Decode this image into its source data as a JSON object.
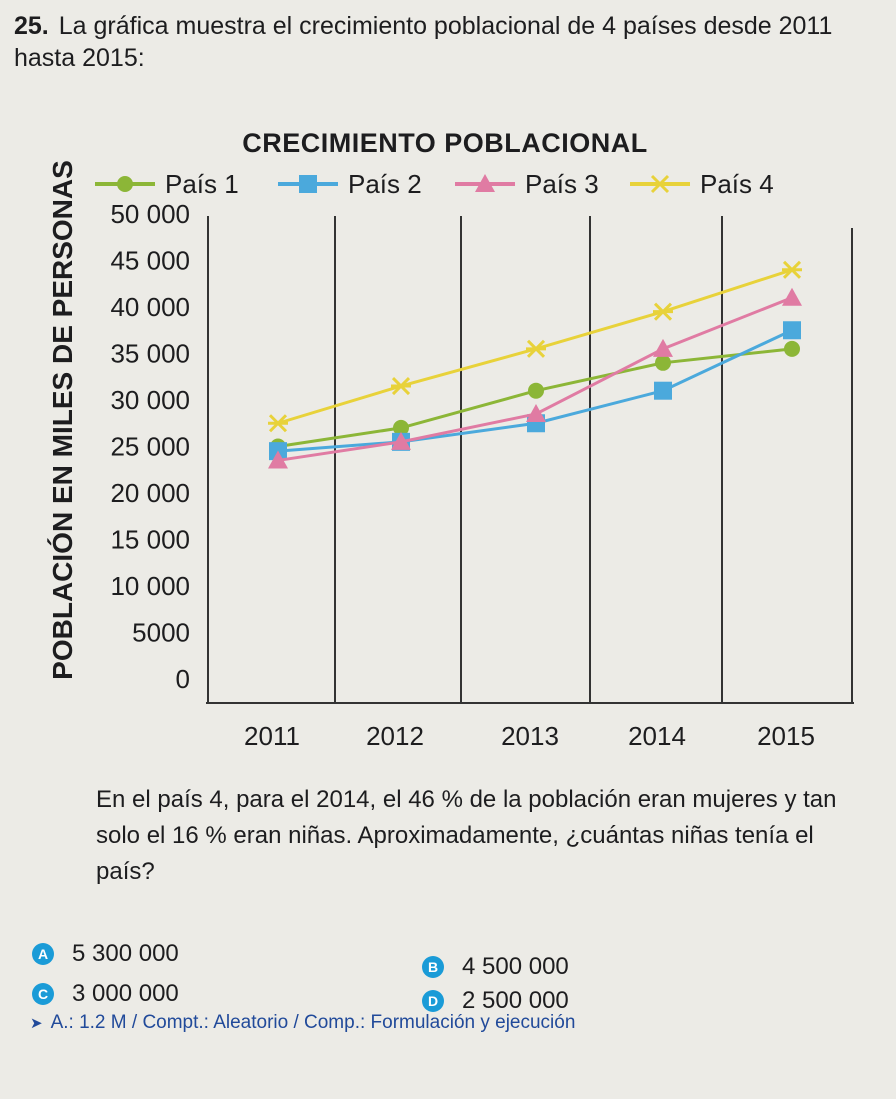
{
  "question": {
    "number": "25.",
    "text": "La gráfica muestra el crecimiento poblacional de 4 países desde 2011 hasta 2015:",
    "prompt": "En el país 4, para el 2014, el 46 % de la población eran mujeres y tan solo el 16 % eran niñas. Aproximadamente, ¿cuántas niñas tenía el país?"
  },
  "options": [
    {
      "letter": "A",
      "value": "5 300 000"
    },
    {
      "letter": "B",
      "value": "4 500 000"
    },
    {
      "letter": "C",
      "value": "3 000 000"
    },
    {
      "letter": "D",
      "value": "2 500 000"
    }
  ],
  "footer": "A.: 1.2 M / Compt.: Aleatorio / Comp.: Formulación y ejecución",
  "colors": {
    "badge": "#1a9bd7",
    "footer": "#214a9a"
  },
  "chart_data": {
    "type": "line",
    "title": "CRECIMIENTO POBLACIONAL",
    "ylabel": "POBLACIÓN EN MILES DE PERSONAS",
    "xlabel": "",
    "x": [
      "2011",
      "2012",
      "2013",
      "2014",
      "2015"
    ],
    "ylim": [
      0,
      50000
    ],
    "yticks": [
      0,
      5000,
      10000,
      15000,
      20000,
      25000,
      30000,
      35000,
      40000,
      45000,
      50000
    ],
    "ytick_labels": [
      "0",
      "5000",
      "10 000",
      "15 000",
      "20 000",
      "25 000",
      "30 000",
      "35 000",
      "40 000",
      "45 000",
      "50 000"
    ],
    "legend_position": "top",
    "series": [
      {
        "name": "País 1",
        "marker": "circle",
        "color": "#8cb637",
        "values": [
          25000,
          27000,
          31000,
          34000,
          35500
        ]
      },
      {
        "name": "País 2",
        "marker": "square",
        "color": "#4ba9dc",
        "values": [
          24500,
          25500,
          27500,
          31000,
          37500
        ]
      },
      {
        "name": "País 3",
        "marker": "triangle",
        "color": "#e07ba3",
        "values": [
          23500,
          25500,
          28500,
          35500,
          41000
        ]
      },
      {
        "name": "País 4",
        "marker": "star",
        "color": "#e8d23a",
        "values": [
          27500,
          31500,
          35500,
          39500,
          44000
        ]
      }
    ]
  }
}
